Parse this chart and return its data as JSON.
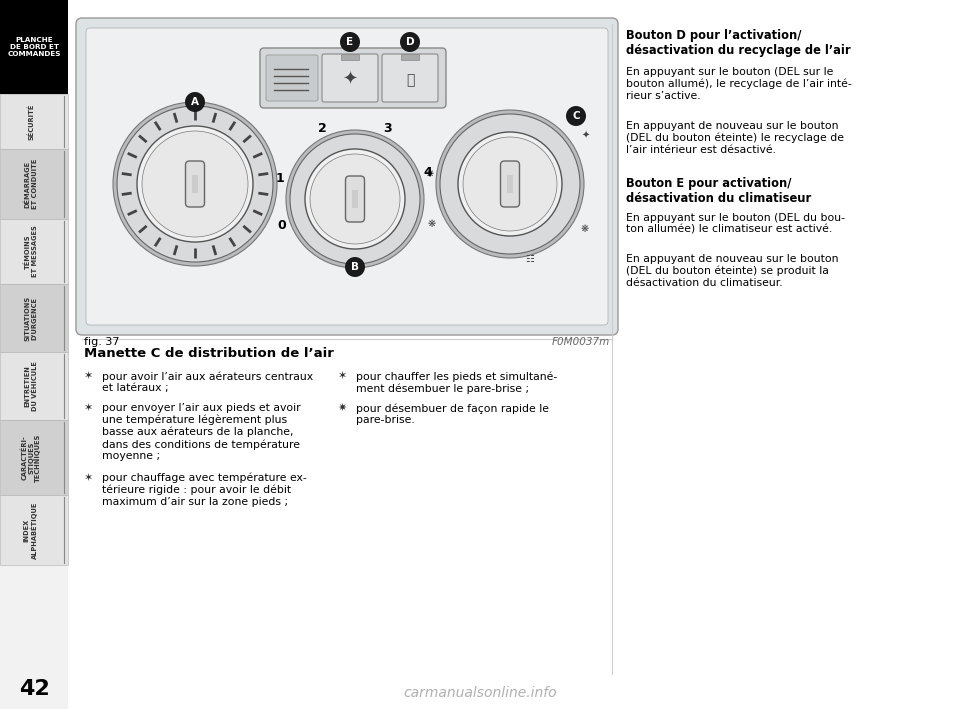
{
  "page_bg": "#ffffff",
  "sidebar_tab_label": "PLANCHE\nDE BORD ET\nCOMMANDES",
  "sidebar_sections": [
    "SÉCURITÉ",
    "DÉMARRAGE\nET CONDUITE",
    "TÉMOINS\nET MESSAGES",
    "SITUATIONS\nD'URGENCE",
    "ENTRETIEN\nDU VÉHICULE",
    "CARACTÉRI-\nSTIQUES\nTECHNIQUES",
    "INDEX\nALPHABÉTIQUE"
  ],
  "page_number": "42",
  "fig_label": "fig. 37",
  "fig_ref": "F0M0037m",
  "section_title": "Manette C de distribution de l’air",
  "bullets_left": [
    "pour avoir l’air aux aérateurs centraux\net latéraux ;",
    "pour envoyer l’air aux pieds et avoir\nune température légèrement plus\nbasse aux aérateurs de la planche,\ndans des conditions de température\nmoyenne ;",
    "pour chauffage avec température ex-\ntérieure rigide : pour avoir le débit\nmaximum d’air sur la zone pieds ;"
  ],
  "bullets_right": [
    "pour chauffer les pieds et simultané-\nment désembuer le pare-brise ;",
    "pour désembuer de façon rapide le\npare-brise."
  ],
  "right_title1": "Bouton D pour l’activation/\ndésactivation du recyclage de l’air",
  "right_para1a": "En appuyant sur le bouton (DEL sur le\nbouton allumé), le recyclage de l’air inté-\nrieur s’active.",
  "right_para1b": "En appuyant de nouveau sur le bouton\n(DEL du bouton éteinte) le recyclage de\nl’air intérieur est désactivé.",
  "right_title2": "Bouton E pour activation/\ndésactivation du climatiseur",
  "right_para2a": "En appuyant sur le bouton (DEL du bou-\nton allumée) le climatiseur est activé.",
  "right_para2b": "En appuyant de nouveau sur le bouton\n(DEL du bouton éteinte) se produit la\ndésactivation du climatiseur.",
  "watermark": "carmanualsonline.info",
  "diagram_bg": "#dde2e5",
  "panel_bg": "#eef0f1",
  "dial_outer_color": "#c0c0c0",
  "dial_inner_color": "#f5f5f5",
  "dial_edge_color": "#555555",
  "callout_bg": "#1a1a1a",
  "callout_fg": "#ffffff"
}
